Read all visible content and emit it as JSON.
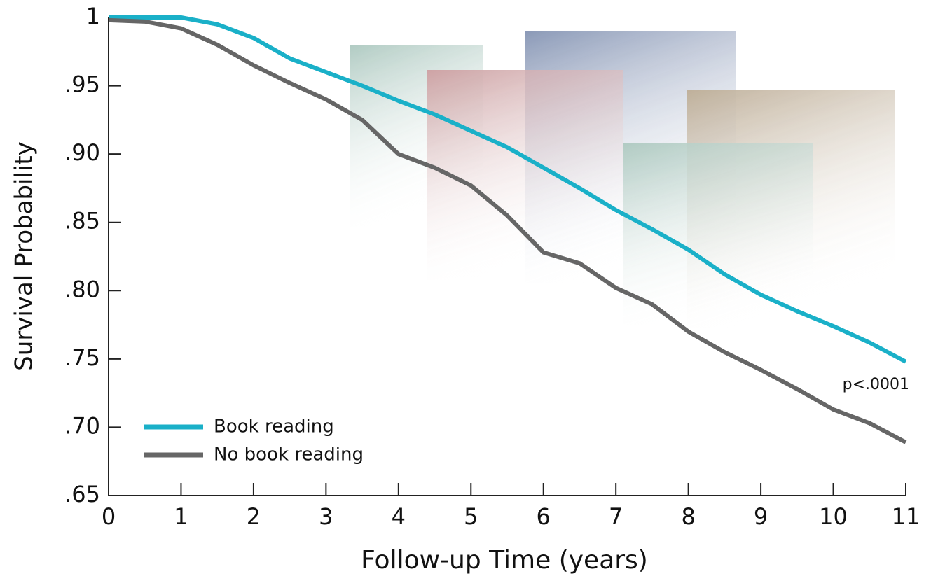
{
  "chart_data": {
    "type": "line",
    "xlabel": "Follow-up Time (years)",
    "ylabel": "Survival Probability",
    "annotation": "p<.0001",
    "x": [
      0,
      0.5,
      1,
      1.5,
      2,
      2.5,
      3,
      3.5,
      4,
      4.5,
      5,
      5.5,
      6,
      6.5,
      7,
      7.5,
      8,
      8.5,
      9,
      9.5,
      10,
      10.5,
      11
    ],
    "series": [
      {
        "name": "Book reading",
        "color": "#1ab0c8",
        "values": [
          1,
          1,
          1,
          0.995,
          0.985,
          0.97,
          0.96,
          0.95,
          0.939,
          0.929,
          0.917,
          0.905,
          0.89,
          0.875,
          0.859,
          0.845,
          0.83,
          0.812,
          0.797,
          0.785,
          0.774,
          0.762,
          0.748
        ]
      },
      {
        "name": "No book reading",
        "color": "#666666",
        "values": [
          0.998,
          0.997,
          0.992,
          0.98,
          0.965,
          0.952,
          0.94,
          0.925,
          0.9,
          0.89,
          0.877,
          0.855,
          0.828,
          0.82,
          0.802,
          0.79,
          0.77,
          0.755,
          0.742,
          0.728,
          0.713,
          0.703,
          0.689
        ]
      }
    ],
    "xlim": [
      0,
      11
    ],
    "xticks": [
      0,
      1,
      2,
      3,
      4,
      5,
      6,
      7,
      8,
      9,
      10,
      11
    ],
    "ylim": [
      0.65,
      1
    ],
    "yticks": [
      {
        "value": 0.65,
        "label": ".65"
      },
      {
        "value": 0.7,
        "label": ".70"
      },
      {
        "value": 0.75,
        "label": ".75"
      },
      {
        "value": 0.8,
        "label": ".80"
      },
      {
        "value": 0.85,
        "label": ".85"
      },
      {
        "value": 0.9,
        "label": ".90"
      },
      {
        "value": 0.95,
        "label": ".95"
      },
      1
    ],
    "legend": "lower left"
  }
}
